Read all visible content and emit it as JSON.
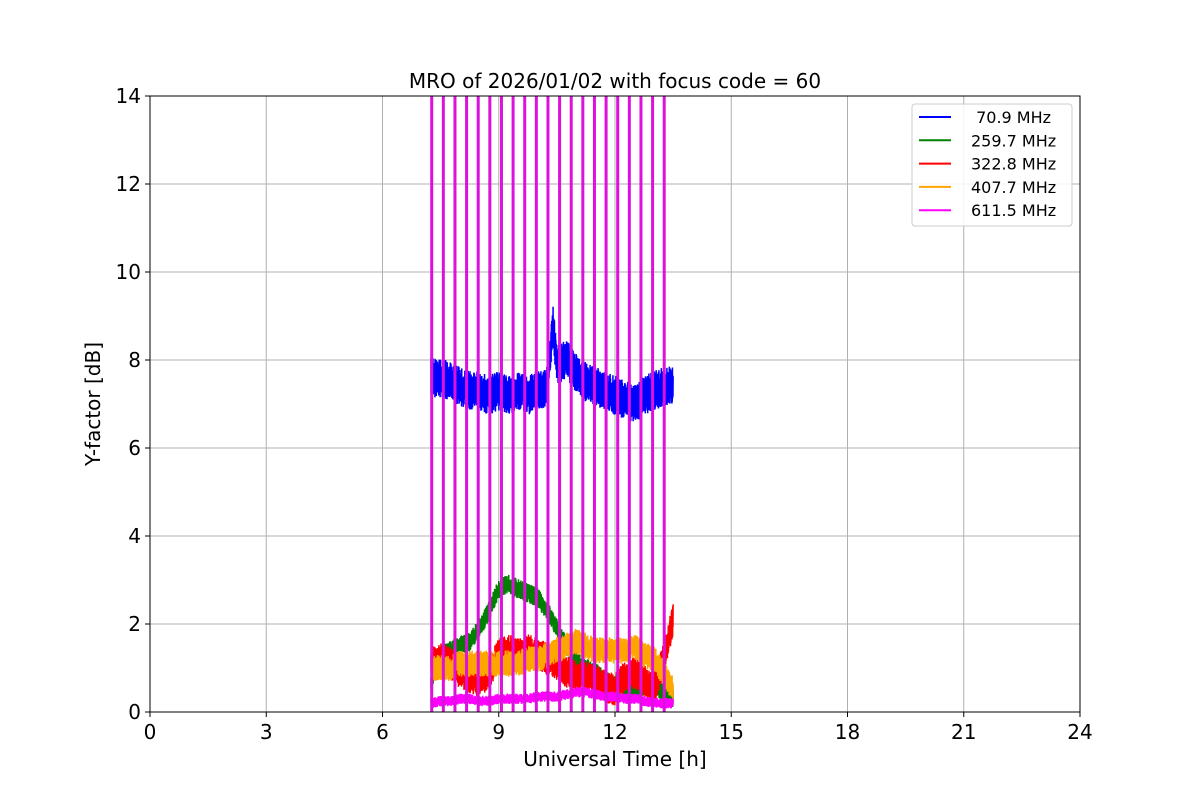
{
  "chart_data": {
    "type": "line",
    "title": "MRO of 2026/01/02 with focus code = 60",
    "xlabel": "Universal Time [h]",
    "ylabel": "Y-factor [dB]",
    "xlim": [
      0,
      24
    ],
    "ylim": [
      0,
      14
    ],
    "xticks": [
      0,
      3,
      6,
      9,
      12,
      15,
      18,
      21,
      24
    ],
    "yticks": [
      0,
      2,
      4,
      6,
      8,
      10,
      12,
      14
    ],
    "xtick_labels": [
      "0",
      "3",
      "6",
      "9",
      "12",
      "15",
      "18",
      "21",
      "24"
    ],
    "ytick_labels": [
      "0",
      "2",
      "4",
      "6",
      "8",
      "10",
      "12",
      "14"
    ],
    "grid": true,
    "legend_position": "top-right",
    "series": [
      {
        "name": " 70.9 MHz",
        "color": "#0000ff",
        "x": [
          7.25,
          7.5,
          7.75,
          8.0,
          8.25,
          8.5,
          8.75,
          9.0,
          9.25,
          9.5,
          9.75,
          10.0,
          10.25,
          10.4,
          10.5,
          10.75,
          11.0,
          11.25,
          11.5,
          11.75,
          12.0,
          12.25,
          12.5,
          12.75,
          13.0,
          13.25,
          13.5
        ],
        "values": [
          7.6,
          7.6,
          7.5,
          7.4,
          7.3,
          7.3,
          7.2,
          7.3,
          7.2,
          7.3,
          7.2,
          7.3,
          7.4,
          8.8,
          7.9,
          8.0,
          7.7,
          7.5,
          7.4,
          7.3,
          7.2,
          7.1,
          7.0,
          7.2,
          7.3,
          7.4,
          7.4
        ],
        "noise": 0.3
      },
      {
        "name": "259.7 MHz",
        "color": "#008000",
        "x": [
          7.25,
          7.5,
          7.75,
          8.0,
          8.25,
          8.5,
          8.75,
          9.0,
          9.25,
          9.5,
          9.75,
          10.0,
          10.25,
          10.5,
          10.75,
          11.0,
          11.25,
          11.5,
          11.75,
          12.0,
          12.25,
          12.5,
          12.75,
          13.0,
          13.25,
          13.5
        ],
        "values": [
          0.7,
          1.3,
          1.4,
          1.5,
          1.6,
          1.9,
          2.3,
          2.8,
          2.9,
          2.8,
          2.7,
          2.6,
          2.3,
          1.9,
          1.5,
          1.2,
          1.0,
          0.9,
          0.7,
          0.6,
          0.5,
          0.5,
          0.6,
          0.7,
          0.4,
          0.3
        ],
        "noise": 0.15
      },
      {
        "name": "322.8 MHz",
        "color": "#ff0000",
        "x": [
          7.25,
          7.5,
          7.75,
          8.0,
          8.25,
          8.5,
          8.75,
          9.0,
          9.25,
          9.5,
          9.75,
          10.0,
          10.25,
          10.5,
          10.75,
          11.0,
          11.25,
          11.5,
          11.75,
          12.0,
          12.25,
          12.5,
          12.75,
          13.0,
          13.25,
          13.5
        ],
        "values": [
          1.1,
          1.2,
          1.1,
          0.9,
          0.8,
          0.7,
          0.9,
          1.3,
          1.4,
          1.3,
          1.4,
          1.3,
          1.2,
          1.1,
          0.9,
          0.8,
          0.8,
          0.7,
          0.6,
          0.5,
          0.8,
          0.9,
          0.7,
          0.5,
          1.2,
          2.1
        ],
        "noise": 0.25
      },
      {
        "name": "407.7 MHz",
        "color": "#ffa500",
        "x": [
          7.25,
          7.5,
          7.75,
          8.0,
          8.25,
          8.5,
          8.75,
          9.0,
          9.25,
          9.5,
          9.75,
          10.0,
          10.25,
          10.5,
          10.75,
          11.0,
          11.25,
          11.5,
          11.75,
          12.0,
          12.25,
          12.5,
          12.75,
          13.0,
          13.25,
          13.5
        ],
        "values": [
          1.0,
          1.0,
          1.0,
          1.1,
          1.1,
          1.1,
          1.1,
          1.1,
          1.1,
          1.1,
          1.2,
          1.2,
          1.3,
          1.4,
          1.5,
          1.6,
          1.5,
          1.4,
          1.4,
          1.4,
          1.4,
          1.5,
          1.3,
          1.2,
          0.9,
          0.5
        ],
        "noise": 0.2
      },
      {
        "name": "611.5 MHz",
        "color": "#ff00ff",
        "x": [
          7.25,
          7.5,
          7.75,
          8.0,
          8.25,
          8.5,
          8.75,
          9.0,
          9.25,
          9.5,
          9.75,
          10.0,
          10.25,
          10.5,
          10.75,
          11.0,
          11.25,
          11.5,
          11.75,
          12.0,
          12.25,
          12.5,
          12.75,
          13.0,
          13.25,
          13.5
        ],
        "values": [
          0.2,
          0.25,
          0.25,
          0.3,
          0.3,
          0.25,
          0.25,
          0.3,
          0.3,
          0.3,
          0.3,
          0.35,
          0.35,
          0.35,
          0.4,
          0.45,
          0.45,
          0.4,
          0.35,
          0.35,
          0.3,
          0.3,
          0.25,
          0.2,
          0.2,
          0.2
        ],
        "noise": 0.08
      }
    ],
    "spikes": {
      "color": "#dd10dd",
      "x": [
        7.27,
        7.57,
        7.87,
        8.17,
        8.47,
        8.77,
        9.07,
        9.37,
        9.67,
        9.97,
        10.27,
        10.57,
        10.87,
        11.17,
        11.47,
        11.77,
        12.07,
        12.37,
        12.67,
        12.97,
        13.27
      ],
      "y_top": 14
    }
  }
}
